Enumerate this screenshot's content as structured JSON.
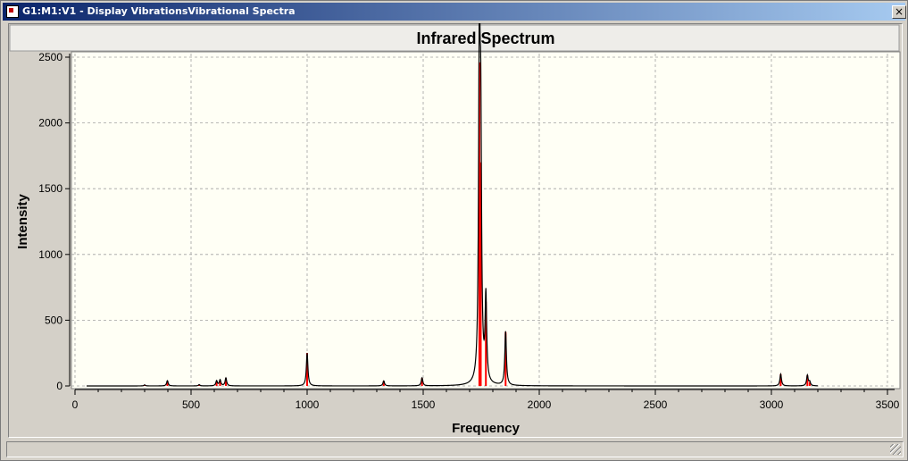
{
  "window": {
    "title": "G1:M1:V1 - Display VibrationsVibrational Spectra",
    "close_label": "×"
  },
  "chart_data": {
    "type": "line",
    "title": "Infrared Spectrum",
    "xlabel": "Frequency",
    "ylabel": "Intensity",
    "xlim": [
      0,
      3500
    ],
    "ylim": [
      0,
      2500
    ],
    "xticks": [
      0,
      500,
      1000,
      1500,
      2000,
      2500,
      3000,
      3500
    ],
    "yticks": [
      0,
      500,
      1000,
      1500,
      2000,
      2500
    ],
    "grid": true,
    "colors": {
      "spectrum": "#000000",
      "sticks": "#ff0000",
      "plot_bg": "#fffff5",
      "grid": "#a0a0a0"
    },
    "spectrum_range": [
      50,
      3200
    ],
    "peaks": [
      {
        "x": 300,
        "y": 8
      },
      {
        "x": 398,
        "y": 40
      },
      {
        "x": 535,
        "y": 10
      },
      {
        "x": 610,
        "y": 38
      },
      {
        "x": 625,
        "y": 45
      },
      {
        "x": 650,
        "y": 60
      },
      {
        "x": 1000,
        "y": 250
      },
      {
        "x": 1330,
        "y": 38
      },
      {
        "x": 1495,
        "y": 60
      },
      {
        "x": 1742,
        "y": 2460
      },
      {
        "x": 1748,
        "y": 1700
      },
      {
        "x": 1770,
        "y": 640
      },
      {
        "x": 1855,
        "y": 410
      },
      {
        "x": 3040,
        "y": 90
      },
      {
        "x": 3155,
        "y": 80
      },
      {
        "x": 3165,
        "y": 30
      }
    ]
  }
}
